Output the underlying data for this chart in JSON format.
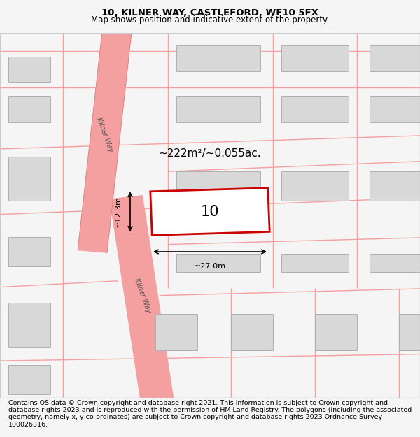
{
  "title": "10, KILNER WAY, CASTLEFORD, WF10 5FX",
  "subtitle": "Map shows position and indicative extent of the property.",
  "area_text": "~222m²/~0.055ac.",
  "plot_number": "10",
  "width_label": "~27.0m",
  "height_label": "~12.3m",
  "copyright_text": "Contains OS data © Crown copyright and database right 2021. This information is subject to Crown copyright and database rights 2023 and is reproduced with the permission of HM Land Registry. The polygons (including the associated geometry, namely x, y co-ordinates) are subject to Crown copyright and database rights 2023 Ordnance Survey 100026316.",
  "bg_color": "#f5f5f5",
  "map_bg": "#ffffff",
  "road_color": "#f5a0a0",
  "road_outline_color": "#e08080",
  "building_color": "#d8d8d8",
  "building_outline": "#b0b0b0",
  "plot_color": "#ffffff",
  "plot_outline": "#cc0000",
  "title_fontsize": 9.5,
  "subtitle_fontsize": 8.5,
  "copyright_fontsize": 6.8
}
